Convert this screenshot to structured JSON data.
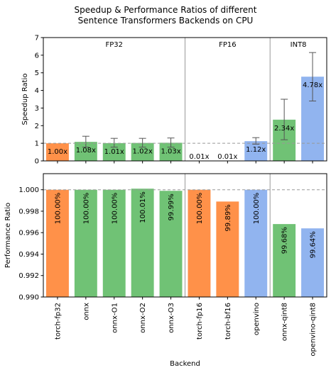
{
  "title_line1": "Speedup & Performance Ratios of different",
  "title_line2": "Sentence Transformers Backends on CPU",
  "xlabel": "Backend",
  "colors": {
    "orange": "#ff9149",
    "green": "#70c275",
    "blue": "#91b4ef",
    "errorbar": "#555555",
    "reference_line": "#999999",
    "group_divider": "#999999"
  },
  "chart_data": [
    {
      "type": "bar",
      "title": "",
      "ylabel": "Speedup Ratio",
      "ylim": [
        0,
        7
      ],
      "yticks": [
        "0",
        "1",
        "2",
        "3",
        "4",
        "5",
        "6",
        "7"
      ],
      "reference_line": 1,
      "groups": [
        "FP32",
        "FP16",
        "INT8"
      ],
      "categories": [
        "torch-fp32",
        "onnx",
        "onnx-O1",
        "onnx-O2",
        "onnx-O3",
        "torch-fp16",
        "torch-bf16",
        "openvino",
        "onnx-qint8",
        "openvino-qint8"
      ],
      "values": [
        1.0,
        1.08,
        1.01,
        1.02,
        1.03,
        0.01,
        0.01,
        1.12,
        2.34,
        4.78
      ],
      "labels": [
        "1.00x",
        "1.08x",
        "1.01x",
        "1.02x",
        "1.03x",
        "0.01x",
        "0.01x",
        "1.12x",
        "2.34x",
        "4.78x"
      ],
      "error_low": [
        null,
        0.78,
        0.78,
        0.78,
        0.78,
        null,
        null,
        0.95,
        1.2,
        3.4
      ],
      "error_high": [
        null,
        1.4,
        1.28,
        1.28,
        1.3,
        null,
        null,
        1.32,
        3.5,
        6.15
      ],
      "bar_colors": [
        "orange",
        "green",
        "green",
        "green",
        "green",
        "orange",
        "orange",
        "blue",
        "green",
        "blue"
      ]
    },
    {
      "type": "bar",
      "title": "",
      "ylabel": "Performance Ratio",
      "ylim": [
        0.99,
        1.0015
      ],
      "yticks": [
        "0.990",
        "0.992",
        "0.994",
        "0.996",
        "0.998",
        "1.000"
      ],
      "reference_line": 1,
      "categories": [
        "torch-fp32",
        "onnx",
        "onnx-O1",
        "onnx-O2",
        "onnx-O3",
        "torch-fp16",
        "torch-bf16",
        "openvino",
        "onnx-qint8",
        "openvino-qint8"
      ],
      "values": [
        1.0,
        1.0,
        1.0,
        1.0001,
        0.9999,
        1.0,
        0.9989,
        1.0,
        0.9968,
        0.9964
      ],
      "labels": [
        "100.00%",
        "100.00%",
        "100.00%",
        "100.01%",
        "99.99%",
        "100.00%",
        "99.89%",
        "100.00%",
        "99.68%",
        "99.64%"
      ],
      "bar_colors": [
        "orange",
        "green",
        "green",
        "green",
        "green",
        "orange",
        "orange",
        "blue",
        "green",
        "blue"
      ]
    }
  ]
}
